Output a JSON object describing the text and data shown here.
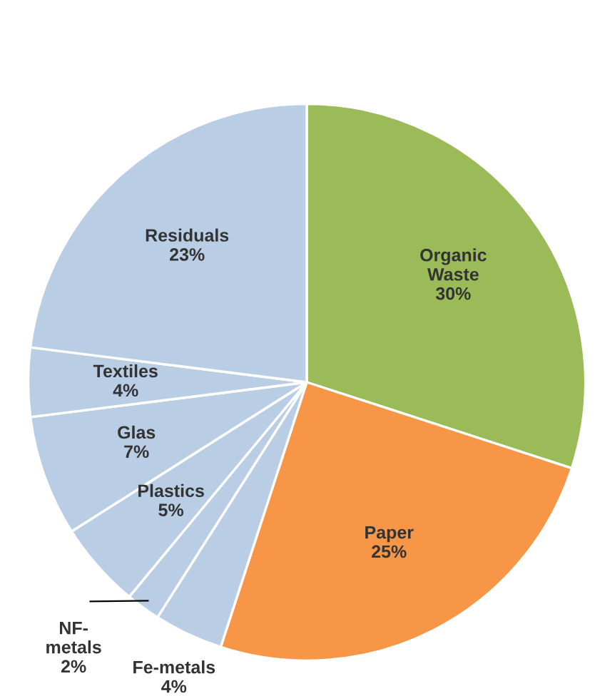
{
  "chart_data": {
    "type": "pie",
    "categories": [
      "Organic Waste",
      "Paper",
      "Fe-metals",
      "NF-metals",
      "Plastics",
      "Glas",
      "Textiles",
      "Residuals"
    ],
    "values": [
      30,
      25,
      4,
      2,
      5,
      7,
      4,
      23
    ],
    "value_labels": [
      "30%",
      "25%",
      "4%",
      "2%",
      "5%",
      "7%",
      "4%",
      "23%"
    ],
    "colors": [
      "#9bbb59",
      "#f79646",
      "#b9cde5",
      "#b9cde5",
      "#b9cde5",
      "#b9cde5",
      "#b9cde5",
      "#b9cde5"
    ],
    "legend": false
  }
}
